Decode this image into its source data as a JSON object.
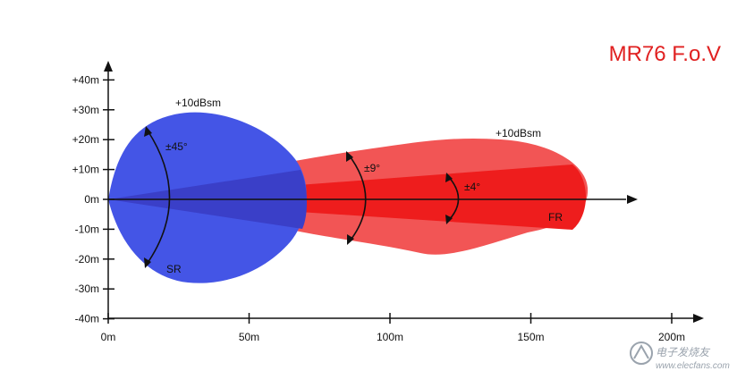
{
  "title": "MR76 F.o.V",
  "colors": {
    "title": "#e02020",
    "sr_fill": "#4455e6",
    "fr_fill_outer": "#f25555",
    "fr_fill_inner": "#ee1d1d",
    "sr_overlap": "#3a3fc8",
    "axis": "#111111",
    "arc": "#111111",
    "watermark": "#9aa3ad"
  },
  "y_axis": {
    "ticks": [
      {
        "value": 40,
        "label": "+40m"
      },
      {
        "value": 30,
        "label": "+30m"
      },
      {
        "value": 20,
        "label": "+20m"
      },
      {
        "value": 10,
        "label": "+10m"
      },
      {
        "value": 0,
        "label": "0m"
      },
      {
        "value": -10,
        "label": "-10m"
      },
      {
        "value": -20,
        "label": "-20m"
      },
      {
        "value": -30,
        "label": "-30m"
      },
      {
        "value": -40,
        "label": "-40m"
      }
    ]
  },
  "x_axis": {
    "ticks": [
      {
        "value": 0,
        "label": "0m"
      },
      {
        "value": 50,
        "label": "50m"
      },
      {
        "value": 100,
        "label": "100m"
      },
      {
        "value": 150,
        "label": "150m"
      },
      {
        "value": 200,
        "label": "200m"
      }
    ]
  },
  "beams": {
    "sr": {
      "label": "SR",
      "rcs_label": "+10dBsm",
      "angle_label": "±45°",
      "half_angle_deg": 45,
      "max_range_m": 70
    },
    "fr": {
      "label": "FR",
      "rcs_label": "+10dBsm",
      "wide_angle_label": "±9°",
      "narrow_angle_label": "±4°",
      "wide_half_angle_deg": 9,
      "narrow_half_angle_deg": 4,
      "max_range_m": 172
    }
  },
  "watermark": {
    "icon": "electronic-enthusiast-logo-icon",
    "text": "电子发烧友",
    "url": "www.elecfans.com"
  }
}
